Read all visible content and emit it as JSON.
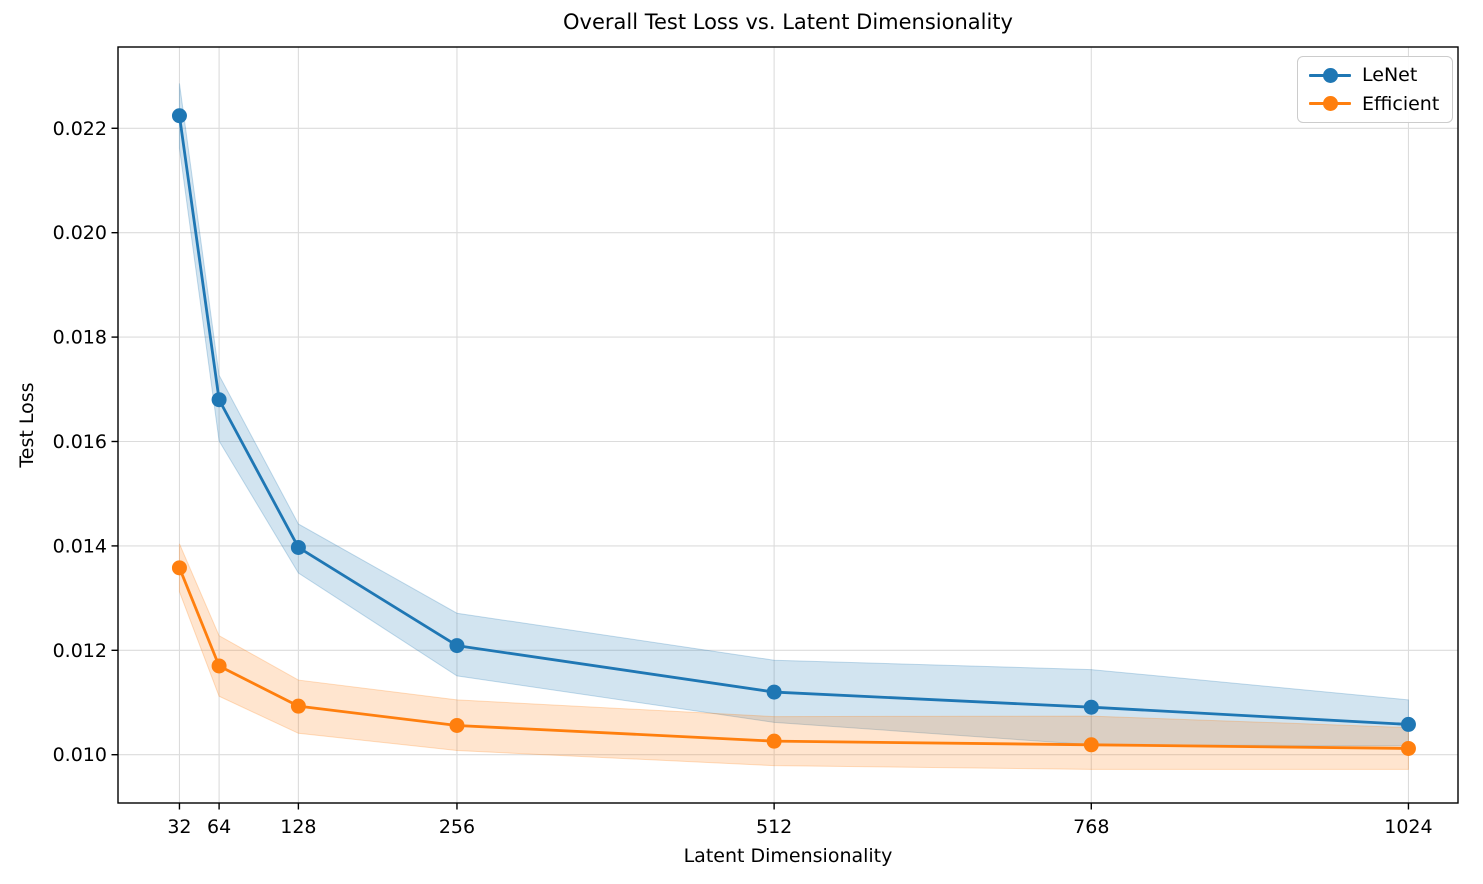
{
  "chart_data": {
    "type": "line",
    "title": "Overall Test Loss vs. Latent Dimensionality",
    "xlabel": "Latent Dimensionality",
    "ylabel": "Test Loss",
    "x": [
      32,
      64,
      128,
      256,
      512,
      768,
      1024
    ],
    "x_ticks": [
      32,
      64,
      128,
      256,
      512,
      768,
      1024
    ],
    "y_ticks": [
      0.01,
      0.012,
      0.014,
      0.016,
      0.018,
      0.02,
      0.022
    ],
    "y_tick_decimals": 3,
    "xlim": [
      -17.6,
      1064
    ],
    "ylim": [
      0.009075,
      0.023557
    ],
    "grid": true,
    "grid_color": "#dcdcdc",
    "legend_position": "upper right",
    "series": [
      {
        "name": "LeNet",
        "color": "#1f77b4",
        "band_alpha": 0.2,
        "values": [
          0.02224,
          0.0168,
          0.01397,
          0.01209,
          0.0112,
          0.01091,
          0.01058
        ],
        "band_upper": [
          0.02286,
          0.01727,
          0.01442,
          0.01271,
          0.01181,
          0.01163,
          0.01105
        ],
        "band_lower": [
          0.02162,
          0.01601,
          0.01348,
          0.01151,
          0.01062,
          0.01019,
          0.01017
        ]
      },
      {
        "name": "Efficient",
        "color": "#ff7f0e",
        "band_alpha": 0.2,
        "values": [
          0.01358,
          0.0117,
          0.01093,
          0.01056,
          0.01026,
          0.01019,
          0.01012
        ],
        "band_upper": [
          0.01404,
          0.01228,
          0.01143,
          0.01105,
          0.01073,
          0.01074,
          0.01052
        ],
        "band_lower": [
          0.01312,
          0.01112,
          0.01041,
          0.01008,
          0.00979,
          0.00972,
          0.00972
        ]
      }
    ]
  }
}
